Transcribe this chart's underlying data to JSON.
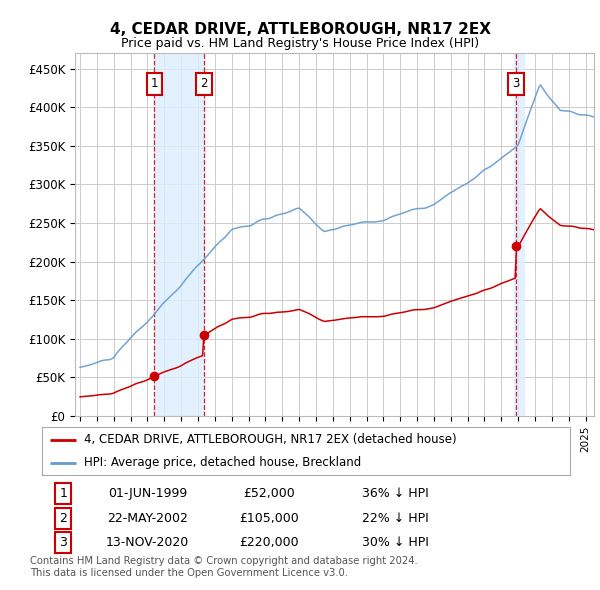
{
  "title": "4, CEDAR DRIVE, ATTLEBOROUGH, NR17 2EX",
  "subtitle": "Price paid vs. HM Land Registry's House Price Index (HPI)",
  "ylim": [
    0,
    470000
  ],
  "yticks": [
    0,
    50000,
    100000,
    150000,
    200000,
    250000,
    300000,
    350000,
    400000,
    450000
  ],
  "ytick_labels": [
    "£0",
    "£50K",
    "£100K",
    "£150K",
    "£200K",
    "£250K",
    "£300K",
    "£350K",
    "£400K",
    "£450K"
  ],
  "legend_label_red": "4, CEDAR DRIVE, ATTLEBOROUGH, NR17 2EX (detached house)",
  "legend_label_blue": "HPI: Average price, detached house, Breckland",
  "sale_times": [
    1999.417,
    2002.375,
    2020.875
  ],
  "sale_prices": [
    52000,
    105000,
    220000
  ],
  "transactions": [
    {
      "num": 1,
      "date": "01-JUN-1999",
      "price": "£52,000",
      "hpi_diff": "36% ↓ HPI"
    },
    {
      "num": 2,
      "date": "22-MAY-2002",
      "price": "£105,000",
      "hpi_diff": "22% ↓ HPI"
    },
    {
      "num": 3,
      "date": "13-NOV-2020",
      "price": "£220,000",
      "hpi_diff": "30% ↓ HPI"
    }
  ],
  "footer": "Contains HM Land Registry data © Crown copyright and database right 2024.\nThis data is licensed under the Open Government Licence v3.0.",
  "bg_color": "#ffffff",
  "grid_color": "#cccccc",
  "red_color": "#cc0000",
  "blue_color": "#6699cc",
  "shade_color": "#ddeeff",
  "x_start": 1995.0,
  "x_end": 2025.5,
  "xlim_left": 1994.7,
  "xlim_right": 2025.5
}
